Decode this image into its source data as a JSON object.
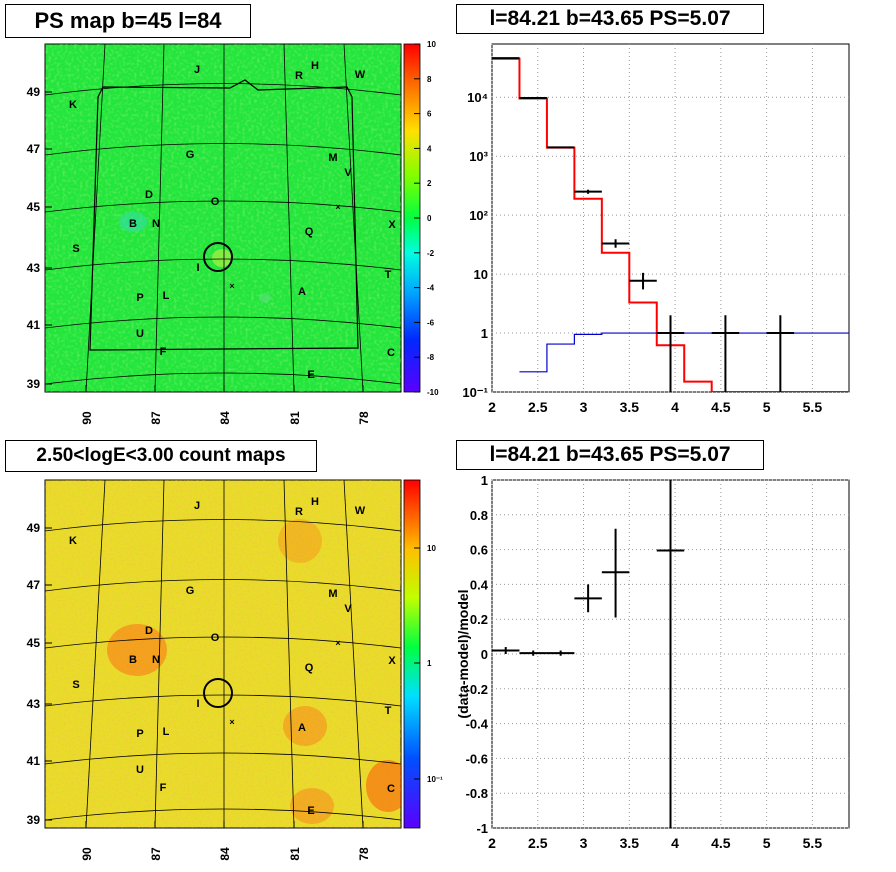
{
  "colors": {
    "line_red": "#ff0000",
    "line_blue": "#0000cc",
    "data_black": "#000000",
    "grid": "#bbbbbb"
  },
  "panels": {
    "ps_map": {
      "title": "PS map b=45 l=84"
    },
    "spectrum": {
      "title": "l=84.21 b=43.65 PS=5.07"
    },
    "count_map": {
      "title": "2.50<logE<3.00 count maps"
    },
    "residual": {
      "title": "l=84.21 b=43.65 PS=5.07"
    }
  },
  "map_axes": {
    "x_ticks": [
      "90",
      "87",
      "84",
      "81",
      "78"
    ],
    "y_ticks": [
      "49",
      "47",
      "45",
      "43",
      "41",
      "39"
    ]
  },
  "source_labels": [
    "J",
    "H",
    "R",
    "W",
    "K",
    "G",
    "M",
    "V",
    "D",
    "O",
    "B",
    "N",
    "Q",
    "X",
    "S",
    "I",
    "T",
    "P",
    "L",
    "A",
    "U",
    "F",
    "C",
    "E"
  ],
  "ps_colorbar_labels": [
    "10",
    "8",
    "6",
    "4",
    "2",
    "0",
    "-2",
    "-4",
    "-6",
    "-8",
    "-10"
  ],
  "count_colorbar_labels": [
    "10",
    "1",
    "10⁻¹"
  ],
  "chart_data": [
    {
      "type": "heatmap",
      "title": "PS map b=45 l=84",
      "xlabel": "",
      "ylabel": "",
      "x_ticks": [
        90,
        87,
        84,
        81,
        78
      ],
      "y_ticks": [
        49,
        47,
        45,
        43,
        41,
        39
      ],
      "colorbar_range": [
        -10,
        10
      ],
      "colorbar_ticks": [
        10,
        8,
        6,
        4,
        2,
        0,
        -2,
        -4,
        -6,
        -8,
        -10
      ],
      "typical_value": 0,
      "annotations": [
        "J",
        "H",
        "R",
        "W",
        "K",
        "G",
        "M",
        "V",
        "D",
        "O",
        "B",
        "N",
        "Q",
        "X",
        "S",
        "I",
        "T",
        "P",
        "L",
        "A",
        "U",
        "F",
        "C",
        "E"
      ]
    },
    {
      "type": "line",
      "title": "l=84.21 b=43.65 PS=5.07",
      "log_y": true,
      "xlim": [
        2,
        5.9
      ],
      "ylim": [
        0.1,
        80000
      ],
      "x_ticks": [
        2,
        2.5,
        3,
        3.5,
        4,
        4.5,
        5,
        5.5
      ],
      "y_ticks": [
        "10⁻¹",
        "1",
        "10",
        "10²",
        "10³",
        "10⁴"
      ],
      "grid": true,
      "series": [
        {
          "style": "step",
          "color": "red",
          "bins": [
            [
              2.0,
              2.3
            ],
            [
              2.3,
              2.6
            ],
            [
              2.6,
              2.9
            ],
            [
              2.9,
              3.2
            ],
            [
              3.2,
              3.5
            ],
            [
              3.5,
              3.8
            ],
            [
              3.8,
              4.1
            ],
            [
              4.1,
              4.4
            ],
            [
              4.4,
              5.9
            ]
          ],
          "values": [
            45000,
            9500,
            1400,
            190,
            23,
            3.3,
            0.62,
            0.15,
            0.1
          ]
        },
        {
          "style": "step",
          "color": "blue",
          "bins": [
            [
              2.3,
              2.6
            ],
            [
              2.6,
              2.9
            ],
            [
              2.9,
              3.2
            ],
            [
              3.2,
              5.9
            ]
          ],
          "values": [
            0.22,
            0.65,
            0.95,
            1.0
          ]
        },
        {
          "style": "errorbar",
          "color": "black",
          "x": [
            2.15,
            2.45,
            2.75,
            3.05,
            3.35,
            3.65,
            3.95,
            4.55,
            5.15
          ],
          "x_err": [
            0.15,
            0.15,
            0.15,
            0.15,
            0.15,
            0.15,
            0.15,
            0.15,
            0.15
          ],
          "y": [
            46000,
            9700,
            1410,
            250,
            33,
            7.7,
            1.0,
            1.0,
            1.0
          ],
          "y_low": [
            45000,
            9500,
            1380,
            230,
            28,
            5.5,
            0.1,
            0.1,
            0.1
          ],
          "y_high": [
            47000,
            9900,
            1440,
            270,
            39,
            10.5,
            2.0,
            2.0,
            2.0
          ]
        }
      ]
    },
    {
      "type": "heatmap",
      "title": "2.50<logE<3.00 count maps",
      "log_color": true,
      "colorbar_ticks": [
        "10",
        "1",
        "10⁻¹"
      ],
      "x_ticks": [
        90,
        87,
        84,
        81,
        78
      ],
      "y_ticks": [
        49,
        47,
        45,
        43,
        41,
        39
      ],
      "annotations": [
        "J",
        "H",
        "R",
        "W",
        "K",
        "G",
        "M",
        "V",
        "D",
        "O",
        "B",
        "N",
        "Q",
        "X",
        "S",
        "I",
        "T",
        "P",
        "L",
        "A",
        "U",
        "F",
        "C",
        "E"
      ]
    },
    {
      "type": "scatter",
      "title": "l=84.21 b=43.65 PS=5.07",
      "ylabel": "(data-model)/model",
      "xlim": [
        2,
        5.9
      ],
      "ylim": [
        -1,
        1
      ],
      "x_ticks": [
        2,
        2.5,
        3,
        3.5,
        4,
        4.5,
        5,
        5.5
      ],
      "y_ticks": [
        1,
        0.8,
        0.6,
        0.4,
        0.2,
        0,
        -0.2,
        -0.4,
        -0.6,
        -0.8,
        -1
      ],
      "grid": true,
      "x": [
        2.15,
        2.45,
        2.75,
        3.05,
        3.35,
        3.95
      ],
      "x_err": [
        0.15,
        0.15,
        0.15,
        0.15,
        0.15,
        0.15
      ],
      "y": [
        0.02,
        0.005,
        0.005,
        0.32,
        0.47,
        0.595
      ],
      "y_low": [
        0.0,
        -0.01,
        -0.01,
        0.24,
        0.21,
        -1.0
      ],
      "y_high": [
        0.04,
        0.02,
        0.02,
        0.4,
        0.72,
        1.0
      ]
    }
  ]
}
